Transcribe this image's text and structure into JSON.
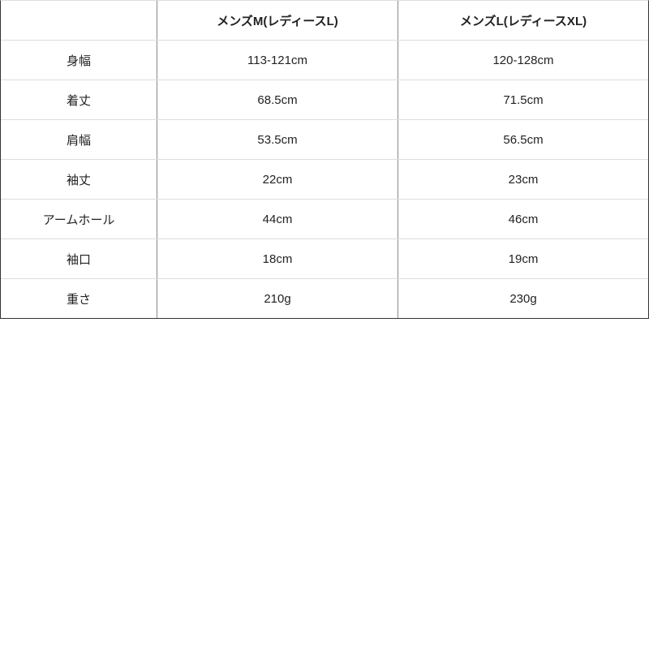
{
  "table": {
    "headers": [
      "",
      "メンズM(レディースL)",
      "メンズL(レディースXL)"
    ],
    "rows": [
      [
        "身幅",
        "113-121cm",
        "120-128cm"
      ],
      [
        "着丈",
        "68.5cm",
        "71.5cm"
      ],
      [
        "肩幅",
        "53.5cm",
        "56.5cm"
      ],
      [
        "袖丈",
        "22cm",
        "23cm"
      ],
      [
        "アームホール",
        "44cm",
        "46cm"
      ],
      [
        "袖口",
        "18cm",
        "19cm"
      ],
      [
        "重さ",
        "210g",
        "230g"
      ]
    ]
  }
}
